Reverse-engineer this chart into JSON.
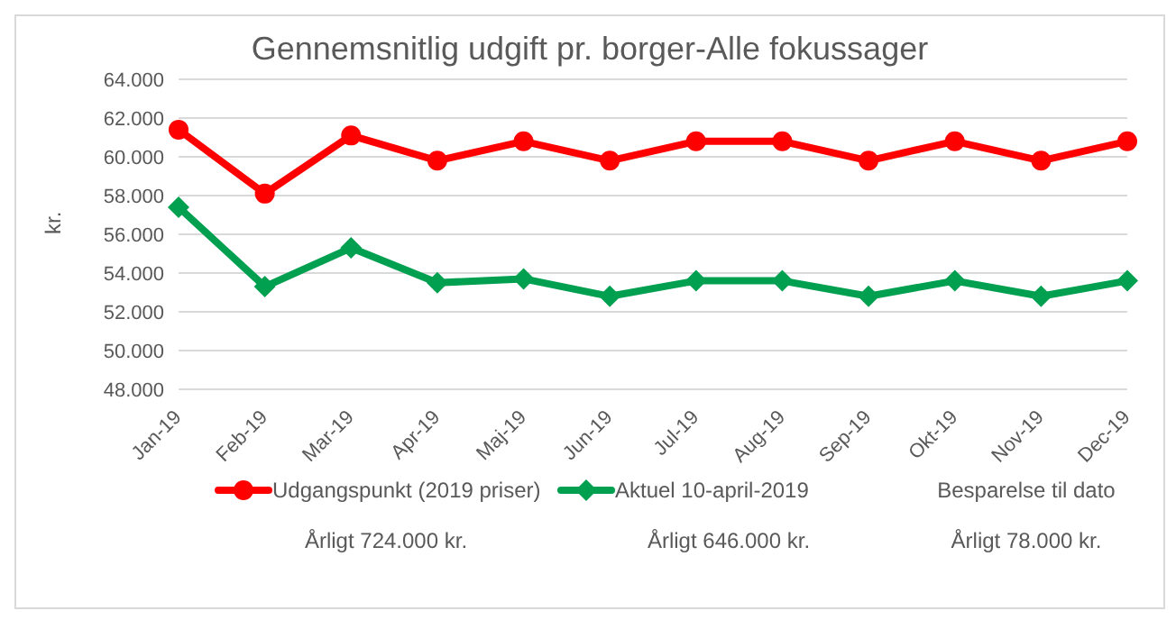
{
  "chart_data": {
    "type": "line",
    "title": "Gennemsnitlig udgift pr. borger-Alle fokussager",
    "ylabel": "kr.",
    "categories": [
      "Jan-19",
      "Feb-19",
      "Mar-19",
      "Apr-19",
      "Maj-19",
      "Jun-19",
      "Jul-19",
      "Aug-19",
      "Sep-19",
      "Okt-19",
      "Nov-19",
      "Dec-19"
    ],
    "series": [
      {
        "name": "Udgangspunkt (2019 priser)",
        "color": "#ff0000",
        "marker": "circle",
        "values": [
          61400,
          58100,
          61100,
          59800,
          60800,
          59800,
          60800,
          60800,
          59800,
          60800,
          59800,
          60800
        ]
      },
      {
        "name": "Aktuel 10-april-2019",
        "color": "#00a050",
        "marker": "diamond",
        "values": [
          57400,
          53300,
          55300,
          53500,
          53700,
          52800,
          53600,
          53600,
          52800,
          53600,
          52800,
          53600
        ]
      }
    ],
    "ylim": [
      48000,
      64000
    ],
    "yticks": [
      {
        "value": 48000,
        "label": "48.000"
      },
      {
        "value": 50000,
        "label": "50.000"
      },
      {
        "value": 52000,
        "label": "52.000"
      },
      {
        "value": 54000,
        "label": "54.000"
      },
      {
        "value": 56000,
        "label": "56.000"
      },
      {
        "value": 58000,
        "label": "58.000"
      },
      {
        "value": 60000,
        "label": "60.000"
      },
      {
        "value": 62000,
        "label": "62.000"
      },
      {
        "value": 64000,
        "label": "64.000"
      }
    ],
    "grid": "y",
    "legend": "bottom",
    "line_style": "solid",
    "annotations": [
      "Besparelse til dato",
      "Årligt 724.000 kr.",
      "Årligt 646.000 kr.",
      "Årligt 78.000 kr."
    ]
  }
}
